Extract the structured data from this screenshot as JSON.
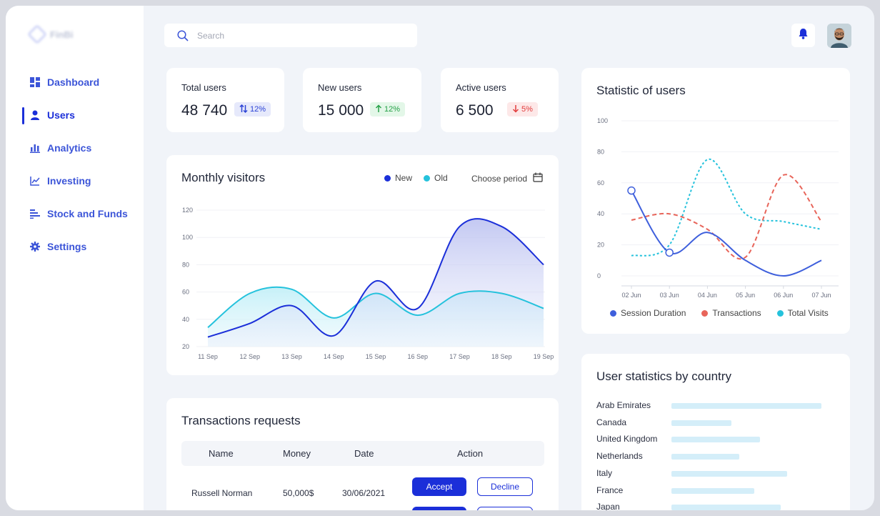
{
  "app": {
    "logo_text": "FinBi"
  },
  "sidebar": {
    "items": [
      {
        "label": "Dashboard",
        "icon": "dashboard-icon"
      },
      {
        "label": "Users",
        "icon": "user-icon",
        "active": true
      },
      {
        "label": "Analytics",
        "icon": "bar-chart-icon"
      },
      {
        "label": "Investing",
        "icon": "line-chart-icon"
      },
      {
        "label": "Stock and Funds",
        "icon": "list-icon"
      },
      {
        "label": "Settings",
        "icon": "gear-icon"
      }
    ]
  },
  "search": {
    "placeholder": "Search",
    "value": ""
  },
  "header": {
    "notification_icon": "bell-icon",
    "avatar": "user-avatar"
  },
  "colors": {
    "accent": "#1b2fd9",
    "cyan": "#25c2dc",
    "red": "#e8655a",
    "bar": "#d4eef9"
  },
  "stats": [
    {
      "title": "Total users",
      "value": "48 740",
      "change": "12%",
      "trend": "updown"
    },
    {
      "title": "New users",
      "value": "15 000",
      "change": "12%",
      "trend": "up"
    },
    {
      "title": "Active users",
      "value": "6 500",
      "change": "5%",
      "trend": "down"
    }
  ],
  "monthly": {
    "title": "Monthly visitors",
    "legend_new": "New",
    "legend_old": "Old",
    "period_label": "Choose period"
  },
  "statistic": {
    "title": "Statistic of users",
    "legend": [
      "Session Duration",
      "Transactions",
      "Total Visits"
    ]
  },
  "transactions": {
    "title": "Transactions requests",
    "headers": {
      "name": "Name",
      "money": "Money",
      "date": "Date",
      "action": "Action"
    },
    "rows": [
      {
        "name": "Russell Norman",
        "money": "50,000$",
        "date": "30/06/2021"
      }
    ],
    "accept_label": "Accept",
    "decline_label": "Decline"
  },
  "countries": {
    "title": "User statistics by country",
    "items": [
      {
        "name": "Arab Emirates",
        "fraction": 1.0
      },
      {
        "name": "Canada",
        "fraction": 0.4
      },
      {
        "name": "United Kingdom",
        "fraction": 0.59
      },
      {
        "name": "Netherlands",
        "fraction": 0.45
      },
      {
        "name": "Italy",
        "fraction": 0.77
      },
      {
        "name": "France",
        "fraction": 0.55
      },
      {
        "name": "Japan",
        "fraction": 0.73
      }
    ]
  },
  "chart_data": [
    {
      "type": "area",
      "categories": [
        "11 Sep",
        "12 Sep",
        "13 Sep",
        "14 Sep",
        "15 Sep",
        "16 Sep",
        "17 Sep",
        "18 Sep",
        "19 Sep"
      ],
      "yticks": [
        20,
        40,
        60,
        80,
        100,
        120
      ],
      "ylim": [
        20,
        120
      ],
      "series": [
        {
          "name": "New",
          "values": [
            27,
            37,
            50,
            28,
            68,
            48,
            108,
            108,
            80
          ]
        },
        {
          "name": "Old",
          "values": [
            34,
            59,
            62,
            41,
            59,
            43,
            59,
            59,
            48
          ]
        }
      ]
    },
    {
      "type": "line",
      "categories": [
        "02 Jun",
        "03 Jun",
        "04 Jun",
        "05 Jun",
        "06 Jun",
        "07 Jun"
      ],
      "yticks": [
        0,
        20,
        40,
        60,
        80,
        100
      ],
      "ylim": [
        0,
        100
      ],
      "series": [
        {
          "name": "Session Duration",
          "values": [
            55,
            15,
            28,
            10,
            0,
            10
          ]
        },
        {
          "name": "Transactions",
          "values": [
            36,
            40,
            30,
            12,
            65,
            35
          ]
        },
        {
          "name": "Total Visits",
          "values": [
            13,
            20,
            75,
            40,
            35,
            30
          ]
        }
      ]
    }
  ]
}
